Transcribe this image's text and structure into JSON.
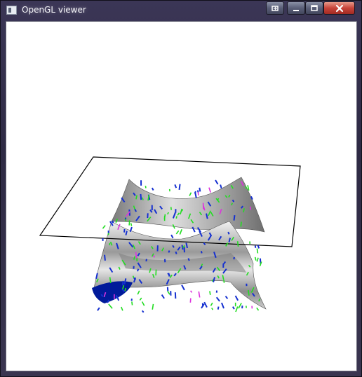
{
  "window": {
    "title": "OpenGL viewer",
    "controls": {
      "minimize": "–",
      "maximize": "□",
      "close": "✕"
    }
  },
  "colors": {
    "surface": "#b8b8b8",
    "normals_green": "#22dd22",
    "normals_blue": "#1530d0",
    "highlight_magenta": "#dd33dd",
    "plane_outline": "#000000",
    "patch_dark_blue": "#001a9a"
  }
}
